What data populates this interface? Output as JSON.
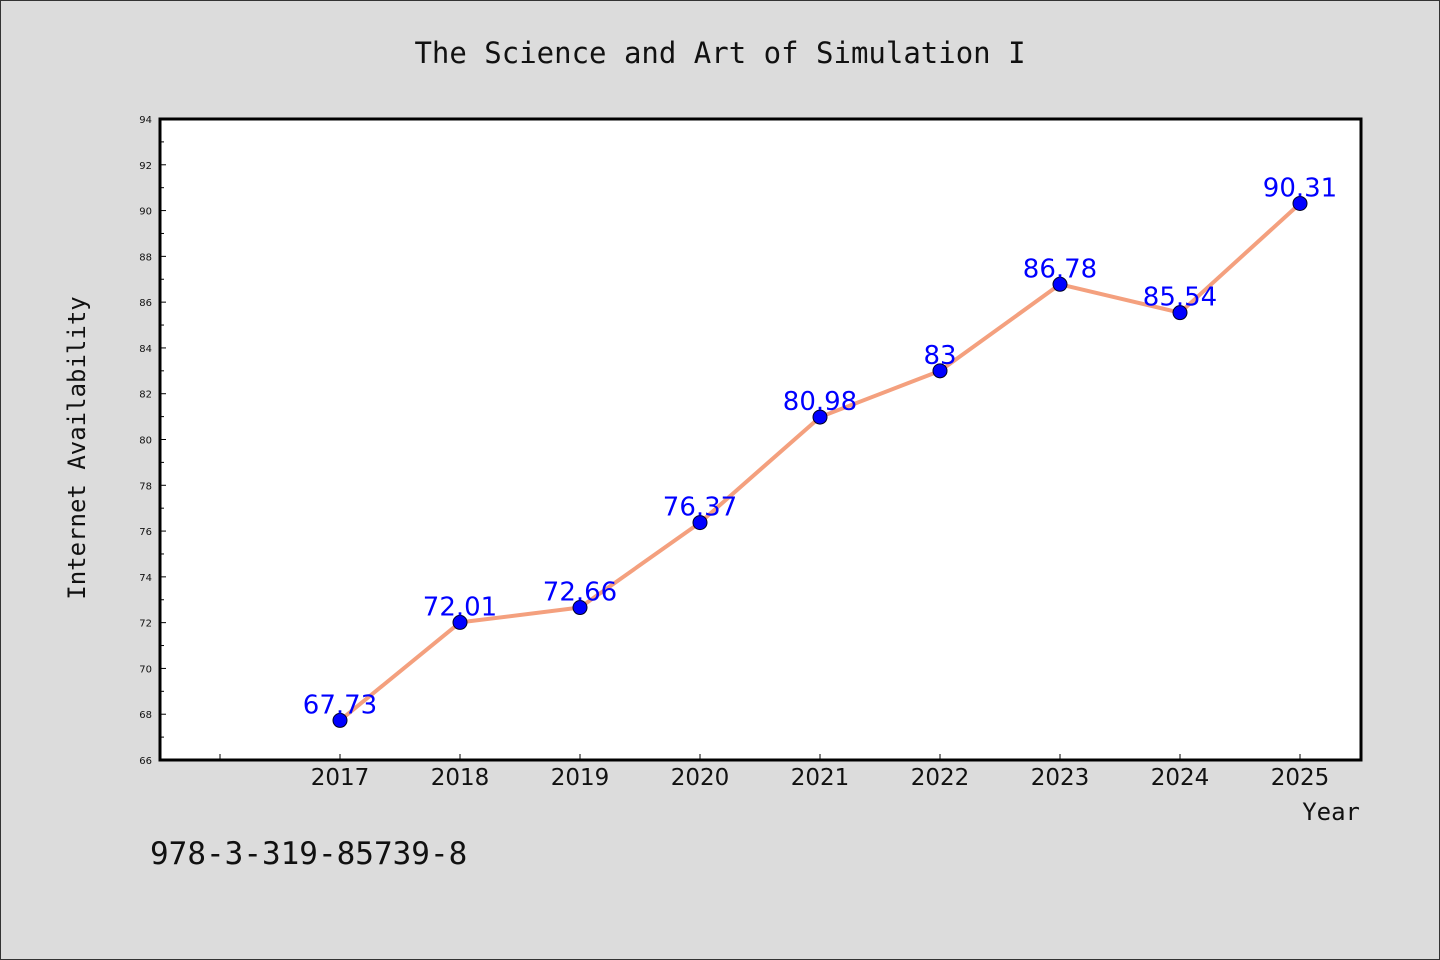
{
  "chart_data": {
    "type": "line",
    "title": "The Science and Art of Simulation I",
    "xlabel": "Year",
    "ylabel": "Internet Availability",
    "categories": [
      "2017",
      "2018",
      "2019",
      "2020",
      "2021",
      "2022",
      "2023",
      "2024",
      "2025"
    ],
    "series": [
      {
        "values": [
          67.73,
          72.01,
          72.66,
          76.37,
          80.98,
          83,
          86.78,
          85.54,
          90.31
        ],
        "labels": [
          "67.73",
          "72.01",
          "72.66",
          "76.37",
          "80.98",
          "83",
          "86.78",
          "85.54",
          "90.31"
        ],
        "line_color": "#f4a07e",
        "marker_color": "#0000ff"
      }
    ],
    "ylim": [
      66,
      94
    ],
    "yticks": [
      "66",
      "68",
      "70",
      "72",
      "74",
      "76",
      "78",
      "80",
      "82",
      "84",
      "86",
      "88",
      "90",
      "92",
      "94"
    ],
    "grid": false,
    "legend": "none"
  },
  "annotation": "978-3-319-85739-8"
}
